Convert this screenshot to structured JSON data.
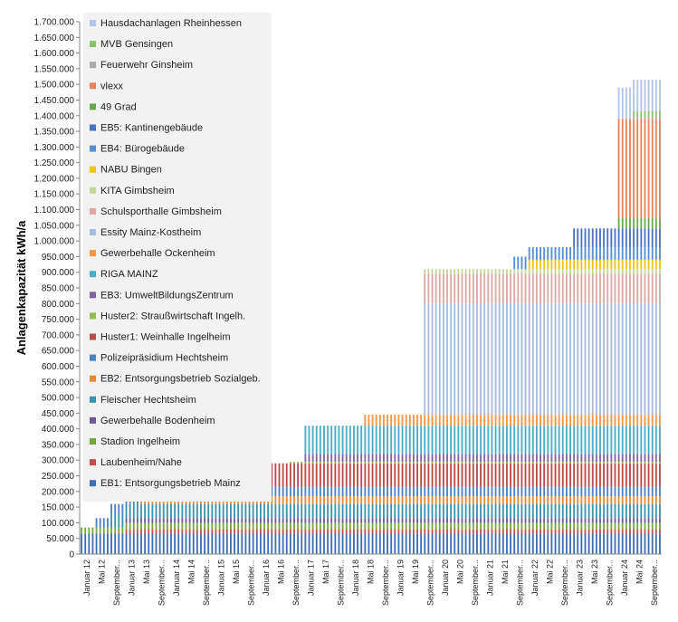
{
  "chart_data": {
    "type": "bar",
    "stacked": true,
    "ylabel": "Anlagenkapazität kWh/a",
    "ylim": [
      0,
      1700000
    ],
    "ytick_step": 50000,
    "grid": false,
    "legend_placement": "top-left",
    "x_tick_labels": [
      "Januar 12",
      "Mai 12",
      "September...",
      "Januar 13",
      "Mai 13",
      "September...",
      "Januar 14",
      "Mai 14",
      "September...",
      "Januar 15",
      "Mai 15",
      "September...",
      "Januar 16",
      "Mai 16",
      "September...",
      "Januar 17",
      "Mai 17",
      "September...",
      "Januar 18",
      "Mai 18",
      "September...",
      "Januar 19",
      "Mai 19",
      "September...",
      "Januar 20",
      "Mai 20",
      "September...",
      "Januar 21",
      "Mai 21",
      "September...",
      "Januar 22",
      "Mai 22",
      "September...",
      "Januar 23",
      "Mai 23",
      "September...",
      "Januar 24",
      "Mai 24",
      "September..."
    ],
    "months": 39,
    "series": [
      {
        "name": "EB1: Entsorgungsbetrieb Mainz",
        "color": "#3f6fb0",
        "value": 65000,
        "start": 0,
        "legend_index": 0
      },
      {
        "name": "Laubenheim/Nahe",
        "color": "#c0504d",
        "value": 15000,
        "start": 3,
        "legend_index": 1
      },
      {
        "name": "Stadion Ingelheim",
        "color": "#77a543",
        "value": 20000,
        "start": 0,
        "legend_index": 2
      },
      {
        "name": "Gewerbehalle Bodenheim",
        "color": "#70579a",
        "value": 15000,
        "start": 3,
        "legend_index": 3
      },
      {
        "name": "Fleischer Hechtsheim",
        "color": "#3b93ad",
        "value": 45000,
        "start": 2,
        "legend_index": 4
      },
      {
        "name": "EB2: Entsorgungsbetrieb Sozialgeb.",
        "color": "#e38a38",
        "value": 25000,
        "start": 4,
        "legend_index": 5
      },
      {
        "name": "Polizeipräsidium Hechtsheim",
        "color": "#4e81c4",
        "value": 30000,
        "start": 1,
        "legend_index": 6
      },
      {
        "name": "Huster1: Weinhalle Ingelheim",
        "color": "#bb4b47",
        "value": 75000,
        "start": 12,
        "legend_index": 7
      },
      {
        "name": "Huster2: Straußwirtschaft Ingelh.",
        "color": "#94b955",
        "value": 5000,
        "start": 14,
        "legend_index": 8
      },
      {
        "name": "EB3: UmweltBildungsZentrum",
        "color": "#8064a2",
        "value": 25000,
        "start": 15,
        "legend_index": 9
      },
      {
        "name": "RIGA MAINZ",
        "color": "#4bacc6",
        "value": 90000,
        "start": 15,
        "legend_index": 10
      },
      {
        "name": "Gewerbehalle Ockenheim",
        "color": "#f79646",
        "value": 35000,
        "start": 19,
        "legend_index": 11
      },
      {
        "name": "Essity Mainz-Kostheim",
        "color": "#a6bbe0",
        "value": 355000,
        "start": 23,
        "legend_index": 12
      },
      {
        "name": "Schulsporthalle Gimbsheim",
        "color": "#dba8a6",
        "value": 95000,
        "start": 23,
        "legend_index": 13
      },
      {
        "name": "KITA Gimbsheim",
        "color": "#c4d79b",
        "value": 15000,
        "start": 23,
        "legend_index": 14
      },
      {
        "name": "NABU Bingen",
        "color": "#f2c314",
        "value": 30000,
        "start": 30,
        "legend_index": 15
      },
      {
        "name": "EB4: Bürogebäude",
        "color": "#558ed5",
        "value": 40000,
        "start": 29,
        "legend_index": 16
      },
      {
        "name": "EB5: Kantinengebäude",
        "color": "#4a72c0",
        "value": 60000,
        "start": 33,
        "legend_index": 17
      },
      {
        "name": "49 Grad",
        "color": "#6aa84f",
        "value": 35000,
        "start": 36,
        "legend_index": 18
      },
      {
        "name": "vlexx",
        "color": "#e8825c",
        "value": 315000,
        "start": 36,
        "legend_index": 19
      },
      {
        "name": "Feuerwehr Ginsheim",
        "color": "#aaaaaa",
        "value": 5000,
        "start": 37,
        "legend_index": 20
      },
      {
        "name": "MVB Gensingen",
        "color": "#8cc16a",
        "value": 20000,
        "start": 37,
        "legend_index": 21
      },
      {
        "name": "Hausdachanlagen Rheinhessen",
        "color": "#b4c4e6",
        "value": 100000,
        "start": 36,
        "legend_index": 22
      }
    ]
  }
}
